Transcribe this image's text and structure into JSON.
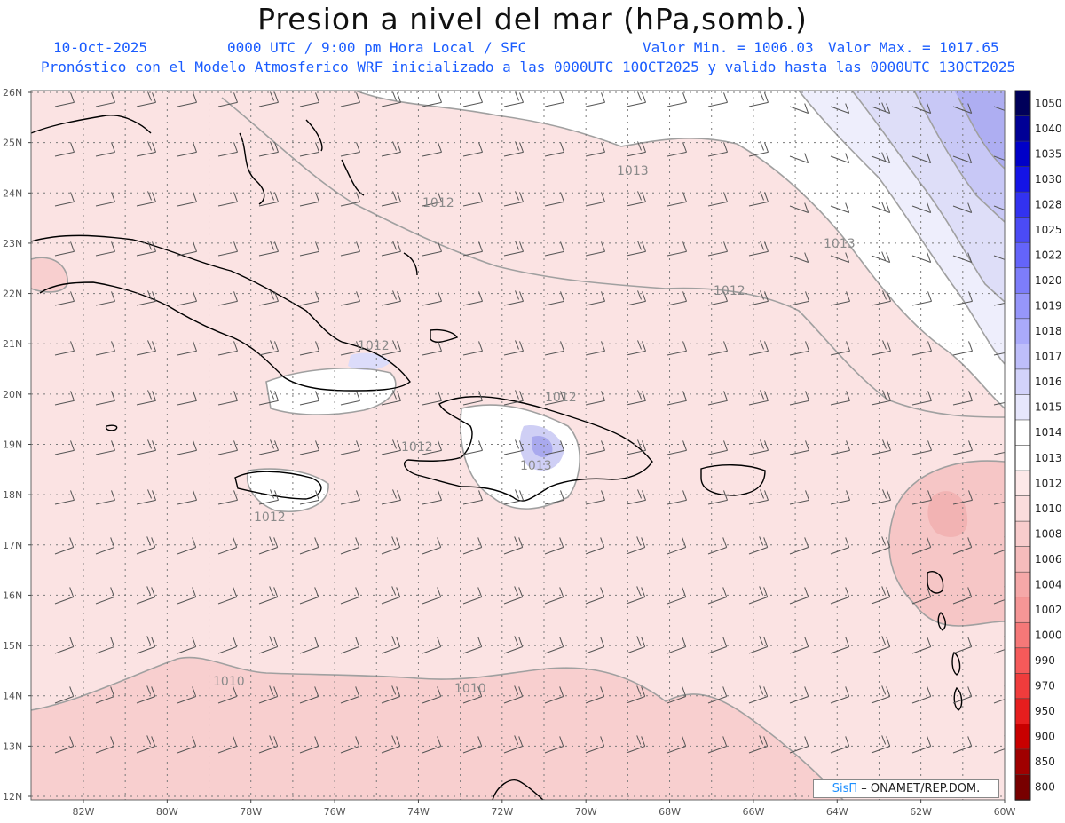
{
  "title": "Presion a nivel del mar (hPa,somb.)",
  "date": "10-Oct-2025",
  "time_label": "0000 UTC / 9:00 pm Hora Local / SFC",
  "value_min": "Valor Min. = 1006.03",
  "value_max": "Valor Max. = 1017.65",
  "model_line": "Pronóstico con el Modelo Atmosferico WRF inicializado a las 0000UTC_10OCT2025 y valido hasta las  0000UTC_13OCT2025",
  "credit": {
    "sis": "SisΠ",
    "rest": "– ONAMET/REP.DOM."
  },
  "lat_labels": [
    "26N",
    "25N",
    "24N",
    "23N",
    "22N",
    "21N",
    "20N",
    "19N",
    "18N",
    "17N",
    "16N",
    "15N",
    "14N",
    "13N",
    "12N"
  ],
  "lon_labels": [
    "82W",
    "80W",
    "78W",
    "76W",
    "74W",
    "72W",
    "70W",
    "68W",
    "66W",
    "64W",
    "62W",
    "60W"
  ],
  "contour_labels": [
    "1013",
    "1012",
    "1013",
    "1012",
    "1012",
    "1012",
    "1012",
    "1013",
    "1012",
    "1010",
    "1010"
  ],
  "legend": {
    "levels": [
      "1050",
      "1040",
      "1035",
      "1030",
      "1028",
      "1025",
      "1022",
      "1020",
      "1019",
      "1018",
      "1017",
      "1016",
      "1015",
      "1014",
      "1013",
      "1012",
      "1010",
      "1008",
      "1006",
      "1004",
      "1002",
      "1000",
      "990",
      "970",
      "950",
      "900",
      "850",
      "800"
    ],
    "colors": [
      "#00005a",
      "#000096",
      "#0000c8",
      "#1414e6",
      "#3232f0",
      "#4b4bf5",
      "#6464fa",
      "#7d7dfa",
      "#9696fa",
      "#aaaafa",
      "#bebefa",
      "#d2d2fa",
      "#e6e6fc",
      "#ffffff",
      "#ffffff",
      "#fde8e8",
      "#fadcdc",
      "#f8cccc",
      "#f5bcbc",
      "#f5a8a8",
      "#f59696",
      "#f57878",
      "#f55a5a",
      "#f03c3c",
      "#e61e1e",
      "#c80000",
      "#a00000",
      "#780000"
    ]
  }
}
